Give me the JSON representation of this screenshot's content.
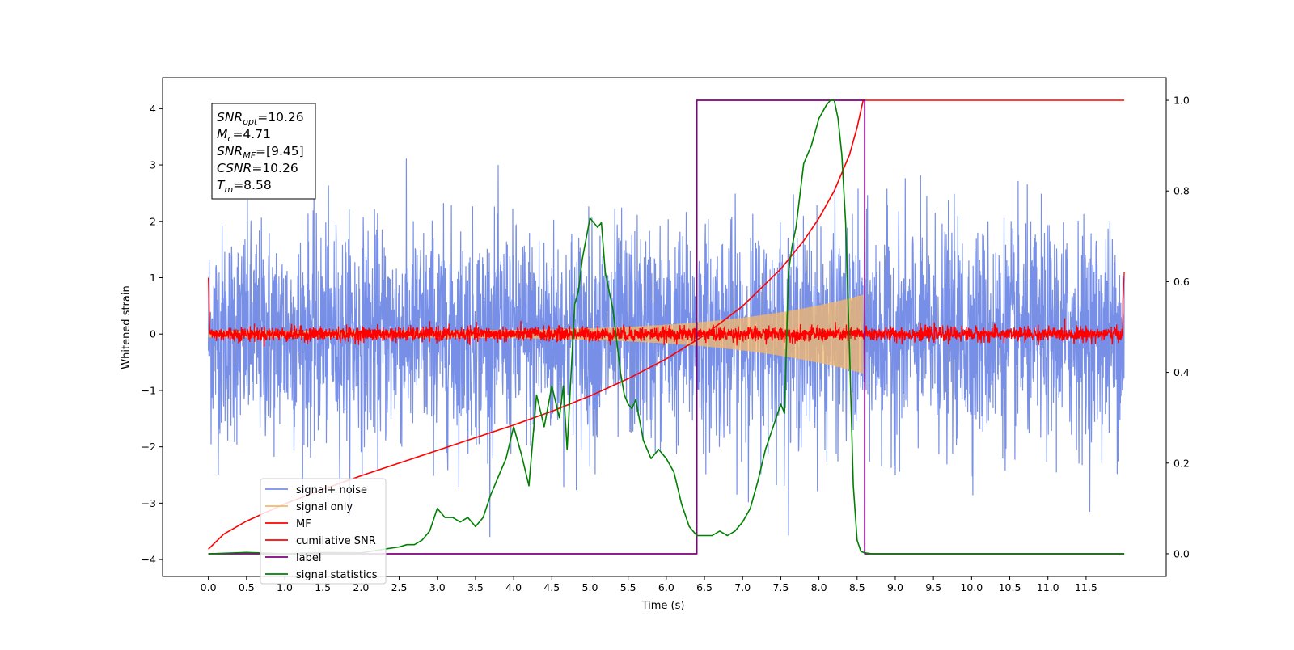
{
  "chart_data": {
    "type": "line",
    "xlabel": "Time (s)",
    "ylabel": "Whitened strain",
    "xlim": [
      -0.6,
      12.55
    ],
    "ylim_left": [
      -4.3,
      4.55
    ],
    "ylim_right": [
      -0.05,
      1.05
    ],
    "x_ticks": [
      "0.0",
      "0.5",
      "1.0",
      "1.5",
      "2.0",
      "2.5",
      "3.0",
      "3.5",
      "4.0",
      "4.5",
      "5.0",
      "5.5",
      "6.0",
      "6.5",
      "7.0",
      "7.5",
      "8.0",
      "8.5",
      "9.0",
      "9.5",
      "10.0",
      "10.5",
      "11.0",
      "11.5"
    ],
    "x_tick_values": [
      0.0,
      0.5,
      1.0,
      1.5,
      2.0,
      2.5,
      3.0,
      3.5,
      4.0,
      4.5,
      5.0,
      5.5,
      6.0,
      6.5,
      7.0,
      7.5,
      8.0,
      8.5,
      9.0,
      9.5,
      10.0,
      10.5,
      11.0,
      11.5
    ],
    "y_left_ticks": [
      "−4",
      "−3",
      "−2",
      "−1",
      "0",
      "1",
      "2",
      "3",
      "4"
    ],
    "y_left_tick_values": [
      -4,
      -3,
      -2,
      -1,
      0,
      1,
      2,
      3,
      4
    ],
    "y_right_ticks": [
      "0.0",
      "0.2",
      "0.4",
      "0.6",
      "0.8",
      "1.0"
    ],
    "y_right_tick_values": [
      0.0,
      0.2,
      0.4,
      0.6,
      0.8,
      1.0
    ],
    "legend_position": "lower-left",
    "series": [
      {
        "name": "signal+ noise",
        "axis": "left",
        "color": "#778fe7",
        "style": "noise band, approx. ±2 with spikes to ±3.6",
        "time_range": [
          0.0,
          12.0
        ]
      },
      {
        "name": "signal only",
        "axis": "left",
        "color": "#f5b86a",
        "style": "chirp, amplitude rising from 0 to ~0.7 at 8.58 s",
        "time_range": [
          0.0,
          8.58
        ]
      },
      {
        "name": "MF",
        "axis": "left",
        "color": "#ff0000",
        "style": "noise band approx. ±0.15 around 0",
        "time_range": [
          0.0,
          12.0
        ]
      },
      {
        "name": "cumilative SNR",
        "axis": "right",
        "color": "#ff0000",
        "x": [
          0.0,
          0.2,
          0.5,
          1.0,
          1.5,
          2.0,
          2.5,
          3.0,
          3.5,
          4.0,
          4.5,
          5.0,
          5.5,
          6.0,
          6.5,
          7.0,
          7.5,
          7.8,
          8.0,
          8.2,
          8.4,
          8.5,
          8.58,
          9.0,
          10.0,
          11.0,
          12.0
        ],
        "y": [
          0.01,
          0.043,
          0.072,
          0.11,
          0.142,
          0.172,
          0.2,
          0.228,
          0.256,
          0.284,
          0.314,
          0.348,
          0.386,
          0.43,
          0.482,
          0.546,
          0.628,
          0.69,
          0.74,
          0.8,
          0.88,
          0.94,
          1.0,
          1.0,
          1.0,
          1.0,
          1.0
        ]
      },
      {
        "name": "label",
        "axis": "right",
        "color": "#800080",
        "x": [
          0.0,
          6.4,
          6.4,
          8.6,
          8.6,
          12.0
        ],
        "y": [
          0.0,
          0.0,
          1.0,
          1.0,
          0.0,
          0.0
        ]
      },
      {
        "name": "signal statistics",
        "axis": "right",
        "color": "#008000",
        "x": [
          0.0,
          0.5,
          1.0,
          1.5,
          2.0,
          2.3,
          2.5,
          2.6,
          2.7,
          2.8,
          2.9,
          3.0,
          3.05,
          3.1,
          3.2,
          3.3,
          3.4,
          3.5,
          3.6,
          3.7,
          3.8,
          3.9,
          4.0,
          4.1,
          4.2,
          4.3,
          4.4,
          4.5,
          4.6,
          4.65,
          4.7,
          4.8,
          4.85,
          4.9,
          5.0,
          5.05,
          5.1,
          5.15,
          5.2,
          5.3,
          5.4,
          5.45,
          5.5,
          5.55,
          5.6,
          5.7,
          5.8,
          5.9,
          6.0,
          6.1,
          6.2,
          6.3,
          6.4,
          6.5,
          6.6,
          6.7,
          6.8,
          6.9,
          7.0,
          7.1,
          7.2,
          7.3,
          7.4,
          7.5,
          7.55,
          7.6,
          7.65,
          7.7,
          7.8,
          7.9,
          8.0,
          8.1,
          8.15,
          8.2,
          8.25,
          8.3,
          8.35,
          8.4,
          8.45,
          8.5,
          8.55,
          8.6,
          8.65,
          8.7,
          8.8,
          9.0,
          10.0,
          11.0,
          12.0
        ],
        "y": [
          0.0,
          0.003,
          0.0,
          0.003,
          0.002,
          0.01,
          0.015,
          0.02,
          0.02,
          0.03,
          0.05,
          0.1,
          0.09,
          0.08,
          0.08,
          0.07,
          0.08,
          0.06,
          0.08,
          0.13,
          0.17,
          0.21,
          0.28,
          0.22,
          0.15,
          0.35,
          0.28,
          0.37,
          0.3,
          0.37,
          0.23,
          0.55,
          0.58,
          0.65,
          0.74,
          0.73,
          0.72,
          0.73,
          0.62,
          0.54,
          0.4,
          0.35,
          0.33,
          0.32,
          0.34,
          0.25,
          0.21,
          0.23,
          0.21,
          0.18,
          0.11,
          0.06,
          0.04,
          0.04,
          0.04,
          0.05,
          0.04,
          0.05,
          0.07,
          0.1,
          0.16,
          0.23,
          0.28,
          0.33,
          0.31,
          0.62,
          0.68,
          0.72,
          0.86,
          0.9,
          0.96,
          0.99,
          1.0,
          1.0,
          0.96,
          0.88,
          0.73,
          0.45,
          0.15,
          0.03,
          0.005,
          0.002,
          0.001,
          0.0,
          0.0,
          0.0,
          0.0,
          0.0,
          0.0
        ]
      }
    ],
    "annotation": [
      {
        "main": "SNR",
        "sub": "opt",
        "val": "=10.26"
      },
      {
        "main": "M",
        "sub": "c",
        "val": "=4.71"
      },
      {
        "main": "SNR",
        "sub": "MF",
        "val": "=[9.45]"
      },
      {
        "main": "CSNR",
        "sub": "",
        "val": "=10.26"
      },
      {
        "main": "T",
        "sub": "m",
        "val": "=8.58"
      }
    ]
  }
}
